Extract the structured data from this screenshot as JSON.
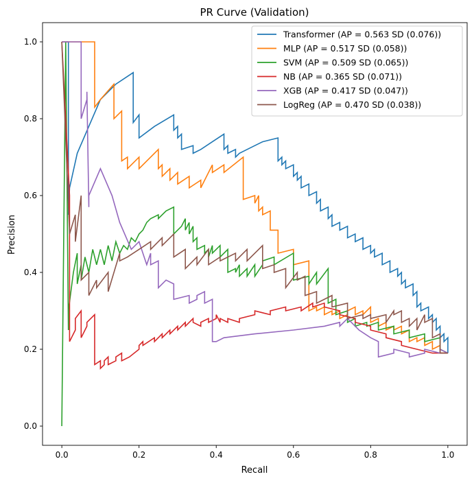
{
  "chart_data": {
    "type": "line",
    "title": "PR Curve (Validation)",
    "xlabel": "Recall",
    "ylabel": "Precision",
    "xlim": [
      -0.05,
      1.05
    ],
    "ylim": [
      -0.05,
      1.05
    ],
    "xticks": [
      "0.0",
      "0.2",
      "0.4",
      "0.6",
      "0.8",
      "1.0"
    ],
    "yticks": [
      "0.0",
      "0.2",
      "0.4",
      "0.6",
      "0.8",
      "1.0"
    ],
    "grid": false,
    "legend_position": "top-right",
    "series": [
      {
        "name": "Transformer (AP = 0.563 SD (0.076))",
        "color": "#1f77b4",
        "x": [
          0,
          0.017,
          0.017,
          0.02,
          0.04,
          0.07,
          0.1,
          0.14,
          0.185,
          0.185,
          0.2,
          0.2,
          0.24,
          0.29,
          0.29,
          0.3,
          0.3,
          0.31,
          0.31,
          0.34,
          0.34,
          0.36,
          0.39,
          0.42,
          0.42,
          0.43,
          0.43,
          0.45,
          0.45,
          0.46,
          0.48,
          0.5,
          0.52,
          0.56,
          0.56,
          0.57,
          0.57,
          0.58,
          0.58,
          0.6,
          0.6,
          0.61,
          0.61,
          0.62,
          0.62,
          0.64,
          0.64,
          0.66,
          0.66,
          0.67,
          0.67,
          0.69,
          0.69,
          0.7,
          0.7,
          0.72,
          0.72,
          0.74,
          0.74,
          0.76,
          0.76,
          0.78,
          0.78,
          0.8,
          0.8,
          0.81,
          0.81,
          0.83,
          0.83,
          0.85,
          0.85,
          0.87,
          0.87,
          0.88,
          0.88,
          0.89,
          0.89,
          0.91,
          0.91,
          0.92,
          0.92,
          0.93,
          0.93,
          0.95,
          0.95,
          0.96,
          0.96,
          0.97,
          0.97,
          0.98,
          0.98,
          0.99,
          0.99,
          1.0,
          1.0
        ],
        "y": [
          1.0,
          1.0,
          0.55,
          0.62,
          0.71,
          0.78,
          0.85,
          0.89,
          0.92,
          0.79,
          0.81,
          0.75,
          0.78,
          0.81,
          0.77,
          0.78,
          0.75,
          0.76,
          0.72,
          0.73,
          0.71,
          0.72,
          0.74,
          0.76,
          0.72,
          0.73,
          0.71,
          0.72,
          0.7,
          0.71,
          0.72,
          0.73,
          0.74,
          0.75,
          0.69,
          0.7,
          0.68,
          0.69,
          0.67,
          0.68,
          0.65,
          0.66,
          0.64,
          0.65,
          0.62,
          0.63,
          0.6,
          0.61,
          0.58,
          0.59,
          0.56,
          0.57,
          0.54,
          0.55,
          0.52,
          0.53,
          0.51,
          0.52,
          0.49,
          0.5,
          0.48,
          0.49,
          0.46,
          0.47,
          0.45,
          0.46,
          0.44,
          0.45,
          0.42,
          0.43,
          0.4,
          0.41,
          0.39,
          0.4,
          0.37,
          0.38,
          0.36,
          0.37,
          0.34,
          0.35,
          0.31,
          0.32,
          0.3,
          0.31,
          0.28,
          0.29,
          0.27,
          0.28,
          0.25,
          0.26,
          0.23,
          0.24,
          0.22,
          0.23,
          0.19
        ]
      },
      {
        "name": "MLP (AP = 0.517 SD (0.058))",
        "color": "#ff7f0e",
        "x": [
          0,
          0.085,
          0.085,
          0.1,
          0.135,
          0.135,
          0.155,
          0.155,
          0.17,
          0.17,
          0.2,
          0.2,
          0.25,
          0.25,
          0.26,
          0.26,
          0.28,
          0.28,
          0.3,
          0.3,
          0.33,
          0.33,
          0.36,
          0.36,
          0.39,
          0.39,
          0.42,
          0.42,
          0.47,
          0.47,
          0.5,
          0.5,
          0.51,
          0.51,
          0.52,
          0.52,
          0.54,
          0.54,
          0.56,
          0.56,
          0.6,
          0.6,
          0.64,
          0.64,
          0.66,
          0.66,
          0.68,
          0.68,
          0.7,
          0.7,
          0.72,
          0.72,
          0.74,
          0.74,
          0.76,
          0.76,
          0.78,
          0.78,
          0.8,
          0.8,
          0.82,
          0.82,
          0.84,
          0.84,
          0.86,
          0.86,
          0.88,
          0.88,
          0.9,
          0.9,
          0.92,
          0.92,
          0.94,
          0.94,
          0.96,
          0.96,
          0.98,
          0.98,
          1.0
        ],
        "y": [
          1.0,
          1.0,
          0.83,
          0.85,
          0.89,
          0.8,
          0.82,
          0.69,
          0.7,
          0.67,
          0.7,
          0.67,
          0.72,
          0.67,
          0.68,
          0.65,
          0.67,
          0.64,
          0.66,
          0.63,
          0.65,
          0.62,
          0.64,
          0.62,
          0.68,
          0.66,
          0.68,
          0.66,
          0.7,
          0.59,
          0.6,
          0.58,
          0.6,
          0.56,
          0.57,
          0.55,
          0.56,
          0.51,
          0.51,
          0.45,
          0.46,
          0.42,
          0.43,
          0.3,
          0.31,
          0.3,
          0.31,
          0.29,
          0.3,
          0.29,
          0.3,
          0.28,
          0.29,
          0.3,
          0.31,
          0.29,
          0.3,
          0.29,
          0.31,
          0.27,
          0.28,
          0.26,
          0.27,
          0.25,
          0.26,
          0.25,
          0.26,
          0.24,
          0.25,
          0.22,
          0.23,
          0.22,
          0.23,
          0.21,
          0.22,
          0.2,
          0.21,
          0.19,
          0.19
        ]
      },
      {
        "name": "SVM (AP = 0.509 SD (0.065))",
        "color": "#2ca02c",
        "x": [
          0,
          0.01,
          0.017,
          0.017,
          0.03,
          0.04,
          0.04,
          0.05,
          0.05,
          0.06,
          0.07,
          0.08,
          0.09,
          0.1,
          0.11,
          0.12,
          0.13,
          0.14,
          0.15,
          0.16,
          0.17,
          0.18,
          0.19,
          0.2,
          0.21,
          0.22,
          0.23,
          0.25,
          0.25,
          0.27,
          0.29,
          0.29,
          0.31,
          0.32,
          0.32,
          0.33,
          0.33,
          0.34,
          0.34,
          0.35,
          0.35,
          0.37,
          0.37,
          0.38,
          0.38,
          0.39,
          0.39,
          0.41,
          0.41,
          0.43,
          0.43,
          0.45,
          0.45,
          0.46,
          0.46,
          0.48,
          0.48,
          0.5,
          0.5,
          0.52,
          0.52,
          0.55,
          0.55,
          0.6,
          0.6,
          0.64,
          0.64,
          0.66,
          0.66,
          0.69,
          0.69,
          0.71,
          0.71,
          0.74,
          0.74,
          0.76,
          0.76,
          0.79,
          0.79,
          0.82,
          0.82,
          0.86,
          0.86,
          0.9,
          0.9,
          0.94,
          0.94,
          0.98,
          0.98,
          1.0
        ],
        "y": [
          0,
          1.0,
          0.25,
          0.3,
          0.4,
          0.45,
          0.37,
          0.42,
          0.38,
          0.44,
          0.4,
          0.46,
          0.42,
          0.46,
          0.42,
          0.47,
          0.43,
          0.48,
          0.45,
          0.47,
          0.46,
          0.49,
          0.48,
          0.5,
          0.51,
          0.53,
          0.54,
          0.55,
          0.54,
          0.56,
          0.57,
          0.5,
          0.52,
          0.54,
          0.51,
          0.53,
          0.5,
          0.52,
          0.48,
          0.49,
          0.46,
          0.47,
          0.45,
          0.46,
          0.44,
          0.47,
          0.45,
          0.47,
          0.44,
          0.46,
          0.4,
          0.41,
          0.4,
          0.42,
          0.39,
          0.41,
          0.39,
          0.42,
          0.39,
          0.42,
          0.43,
          0.44,
          0.42,
          0.45,
          0.38,
          0.39,
          0.37,
          0.4,
          0.37,
          0.41,
          0.32,
          0.33,
          0.29,
          0.3,
          0.27,
          0.28,
          0.26,
          0.27,
          0.26,
          0.27,
          0.25,
          0.26,
          0.24,
          0.25,
          0.23,
          0.24,
          0.22,
          0.23,
          0.2,
          0.19
        ]
      },
      {
        "name": "NB (AP = 0.365 SD (0.071))",
        "color": "#d62728",
        "x": [
          0,
          0.02,
          0.02,
          0.035,
          0.035,
          0.05,
          0.05,
          0.065,
          0.065,
          0.085,
          0.085,
          0.1,
          0.1,
          0.11,
          0.11,
          0.12,
          0.12,
          0.14,
          0.14,
          0.155,
          0.155,
          0.175,
          0.2,
          0.2,
          0.21,
          0.21,
          0.24,
          0.24,
          0.26,
          0.26,
          0.28,
          0.28,
          0.3,
          0.3,
          0.32,
          0.32,
          0.34,
          0.34,
          0.36,
          0.36,
          0.38,
          0.38,
          0.4,
          0.4,
          0.41,
          0.41,
          0.43,
          0.43,
          0.46,
          0.46,
          0.5,
          0.5,
          0.54,
          0.54,
          0.58,
          0.58,
          0.62,
          0.62,
          0.65,
          0.65,
          0.68,
          0.68,
          0.72,
          0.72,
          0.76,
          0.76,
          0.8,
          0.8,
          0.84,
          0.84,
          0.88,
          0.88,
          0.92,
          0.92,
          0.96,
          0.96,
          1.0
        ],
        "y": [
          1.0,
          0.6,
          0.22,
          0.25,
          0.28,
          0.3,
          0.23,
          0.26,
          0.27,
          0.29,
          0.16,
          0.17,
          0.15,
          0.16,
          0.17,
          0.18,
          0.16,
          0.17,
          0.18,
          0.19,
          0.17,
          0.18,
          0.2,
          0.21,
          0.22,
          0.21,
          0.23,
          0.22,
          0.24,
          0.23,
          0.25,
          0.24,
          0.26,
          0.25,
          0.27,
          0.26,
          0.28,
          0.27,
          0.26,
          0.27,
          0.28,
          0.27,
          0.28,
          0.29,
          0.27,
          0.28,
          0.27,
          0.28,
          0.27,
          0.28,
          0.29,
          0.3,
          0.29,
          0.3,
          0.31,
          0.3,
          0.31,
          0.3,
          0.32,
          0.31,
          0.32,
          0.31,
          0.3,
          0.29,
          0.28,
          0.27,
          0.26,
          0.25,
          0.24,
          0.23,
          0.22,
          0.21,
          0.2,
          0.2,
          0.19,
          0.19,
          0.19
        ]
      },
      {
        "name": "XGB (AP = 0.417 SD (0.047))",
        "color": "#9467bd",
        "x": [
          0,
          0.05,
          0.05,
          0.065,
          0.065,
          0.07,
          0.07,
          0.1,
          0.13,
          0.15,
          0.18,
          0.2,
          0.22,
          0.23,
          0.23,
          0.25,
          0.25,
          0.27,
          0.27,
          0.29,
          0.29,
          0.33,
          0.33,
          0.35,
          0.35,
          0.37,
          0.37,
          0.39,
          0.39,
          0.4,
          0.42,
          0.5,
          0.6,
          0.68,
          0.72,
          0.72,
          0.74,
          0.77,
          0.8,
          0.82,
          0.82,
          0.86,
          0.86,
          0.9,
          0.9,
          0.94,
          0.94,
          0.98,
          0.98,
          1.0
        ],
        "y": [
          1.0,
          1.0,
          0.8,
          0.85,
          0.87,
          0.57,
          0.6,
          0.67,
          0.6,
          0.53,
          0.46,
          0.48,
          0.42,
          0.45,
          0.42,
          0.43,
          0.36,
          0.38,
          0.38,
          0.37,
          0.33,
          0.34,
          0.32,
          0.33,
          0.34,
          0.35,
          0.32,
          0.33,
          0.22,
          0.22,
          0.23,
          0.24,
          0.25,
          0.26,
          0.27,
          0.26,
          0.28,
          0.25,
          0.23,
          0.22,
          0.18,
          0.19,
          0.2,
          0.19,
          0.18,
          0.19,
          0.2,
          0.19,
          0.2,
          0.19
        ]
      },
      {
        "name": "LogReg (AP = 0.470 SD (0.038))",
        "color": "#8c564b",
        "x": [
          0,
          0.02,
          0.035,
          0.035,
          0.05,
          0.05,
          0.07,
          0.07,
          0.09,
          0.09,
          0.12,
          0.12,
          0.15,
          0.15,
          0.17,
          0.2,
          0.23,
          0.23,
          0.26,
          0.26,
          0.29,
          0.29,
          0.32,
          0.32,
          0.35,
          0.35,
          0.38,
          0.38,
          0.41,
          0.41,
          0.45,
          0.45,
          0.48,
          0.48,
          0.52,
          0.52,
          0.55,
          0.55,
          0.58,
          0.58,
          0.61,
          0.61,
          0.63,
          0.63,
          0.66,
          0.66,
          0.7,
          0.7,
          0.74,
          0.74,
          0.78,
          0.78,
          0.8,
          0.8,
          0.84,
          0.84,
          0.86,
          0.86,
          0.88,
          0.88,
          0.9,
          0.9,
          0.92,
          0.92,
          0.94,
          0.94,
          0.96,
          0.96,
          0.98,
          0.98,
          1.0
        ],
        "y": [
          1.0,
          0.5,
          0.55,
          0.48,
          0.6,
          0.38,
          0.4,
          0.34,
          0.38,
          0.36,
          0.4,
          0.35,
          0.45,
          0.43,
          0.44,
          0.46,
          0.48,
          0.46,
          0.49,
          0.47,
          0.5,
          0.44,
          0.46,
          0.41,
          0.44,
          0.42,
          0.46,
          0.42,
          0.44,
          0.43,
          0.45,
          0.43,
          0.46,
          0.43,
          0.47,
          0.41,
          0.42,
          0.4,
          0.41,
          0.36,
          0.4,
          0.38,
          0.39,
          0.34,
          0.35,
          0.32,
          0.34,
          0.31,
          0.32,
          0.28,
          0.29,
          0.28,
          0.29,
          0.28,
          0.29,
          0.27,
          0.3,
          0.29,
          0.3,
          0.27,
          0.28,
          0.26,
          0.28,
          0.25,
          0.29,
          0.27,
          0.28,
          0.23,
          0.24,
          0.19,
          0.19
        ]
      }
    ]
  }
}
